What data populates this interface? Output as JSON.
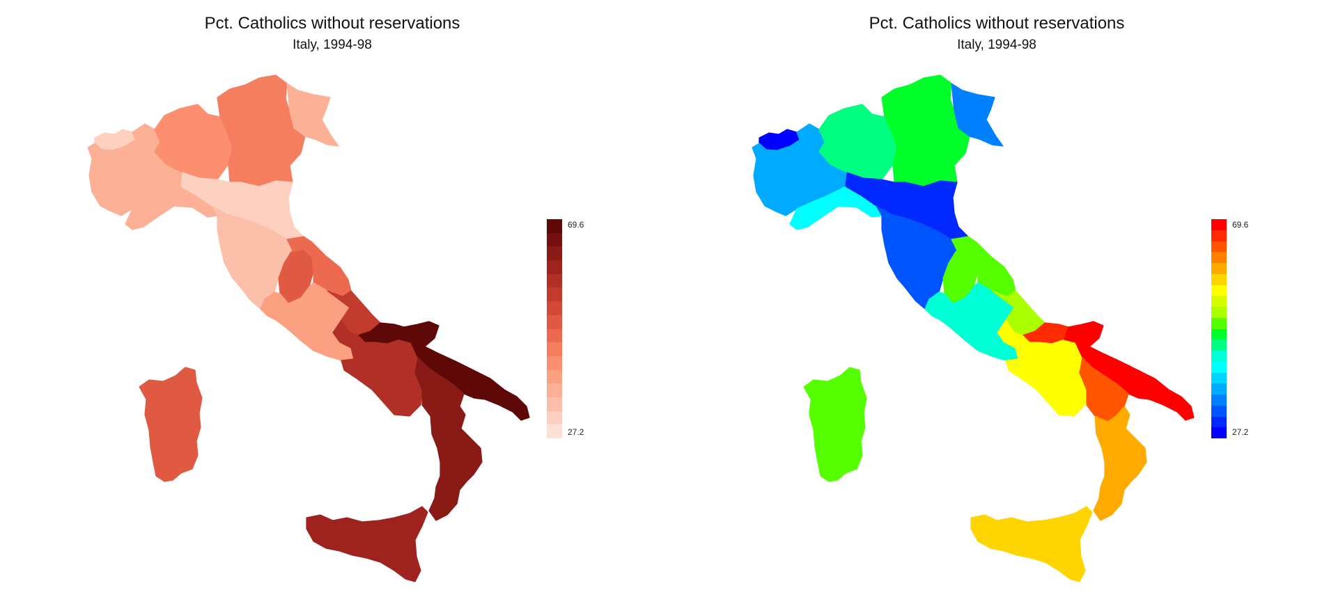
{
  "figure": {
    "title": "Pct. Catholics without reservations",
    "subtitle": "Italy, 1994-98",
    "legend_max": "69.6",
    "legend_min": "27.2"
  },
  "panels": [
    {
      "palette": [
        "#ffe0d6",
        "#fdd0c0",
        "#fcc0aa",
        "#fcb096",
        "#fca082",
        "#fb8f70",
        "#f57e5f",
        "#ec6b50",
        "#e05a43",
        "#d24a37",
        "#c23c2e",
        "#b02f26",
        "#9e231e",
        "#8a1a16",
        "#74100f",
        "#5e0808"
      ],
      "regions": [
        {
          "name": "Valle d'Aosta",
          "value": 31.0
        },
        {
          "name": "Piemonte",
          "value": 36.5
        },
        {
          "name": "Liguria",
          "value": 35.5
        },
        {
          "name": "Lombardia",
          "value": 41.5
        },
        {
          "name": "Trentino-Alto Adige",
          "value": 45.5
        },
        {
          "name": "Veneto",
          "value": 44.0
        },
        {
          "name": "Friuli-Venezia Giulia",
          "value": 37.0
        },
        {
          "name": "Emilia-Romagna",
          "value": 31.5
        },
        {
          "name": "Toscana",
          "value": 32.5
        },
        {
          "name": "Umbria",
          "value": 51.0
        },
        {
          "name": "Marche",
          "value": 47.0
        },
        {
          "name": "Lazio",
          "value": 38.5
        },
        {
          "name": "Abruzzo",
          "value": 54.0
        },
        {
          "name": "Molise",
          "value": 68.0
        },
        {
          "name": "Campania",
          "value": 57.0
        },
        {
          "name": "Puglia",
          "value": 69.6
        },
        {
          "name": "Basilicata",
          "value": 63.5
        },
        {
          "name": "Calabria",
          "value": 62.0
        },
        {
          "name": "Sicilia",
          "value": 60.0
        },
        {
          "name": "Sardegna",
          "value": 50.0
        }
      ]
    },
    {
      "palette": [
        "#0000ff",
        "#0028ff",
        "#0055ff",
        "#0080ff",
        "#00aaff",
        "#00d5ff",
        "#00ffff",
        "#00ffd5",
        "#00ff80",
        "#00ff2a",
        "#55ff00",
        "#aaff00",
        "#d5ff00",
        "#ffff00",
        "#ffd500",
        "#ffaa00",
        "#ff8000",
        "#ff5500",
        "#ff2a00",
        "#ff0000"
      ],
      "regions": [
        {
          "name": "Valle d'Aosta",
          "value": 27.2
        },
        {
          "name": "Piemonte",
          "value": 37.5
        },
        {
          "name": "Liguria",
          "value": 40.0
        },
        {
          "name": "Lombardia",
          "value": 45.0
        },
        {
          "name": "Trentino-Alto Adige",
          "value": 47.5
        },
        {
          "name": "Veneto",
          "value": 48.0
        },
        {
          "name": "Friuli-Venezia Giulia",
          "value": 35.0
        },
        {
          "name": "Emilia-Romagna",
          "value": 30.0
        },
        {
          "name": "Toscana",
          "value": 32.5
        },
        {
          "name": "Umbria",
          "value": 50.5
        },
        {
          "name": "Marche",
          "value": 48.5
        },
        {
          "name": "Lazio",
          "value": 44.0
        },
        {
          "name": "Abruzzo",
          "value": 51.5
        },
        {
          "name": "Molise",
          "value": 67.0
        },
        {
          "name": "Campania",
          "value": 55.5
        },
        {
          "name": "Puglia",
          "value": 69.6
        },
        {
          "name": "Basilicata",
          "value": 64.5
        },
        {
          "name": "Calabria",
          "value": 60.5
        },
        {
          "name": "Sicilia",
          "value": 57.0
        },
        {
          "name": "Sardegna",
          "value": 49.5
        }
      ]
    }
  ]
}
